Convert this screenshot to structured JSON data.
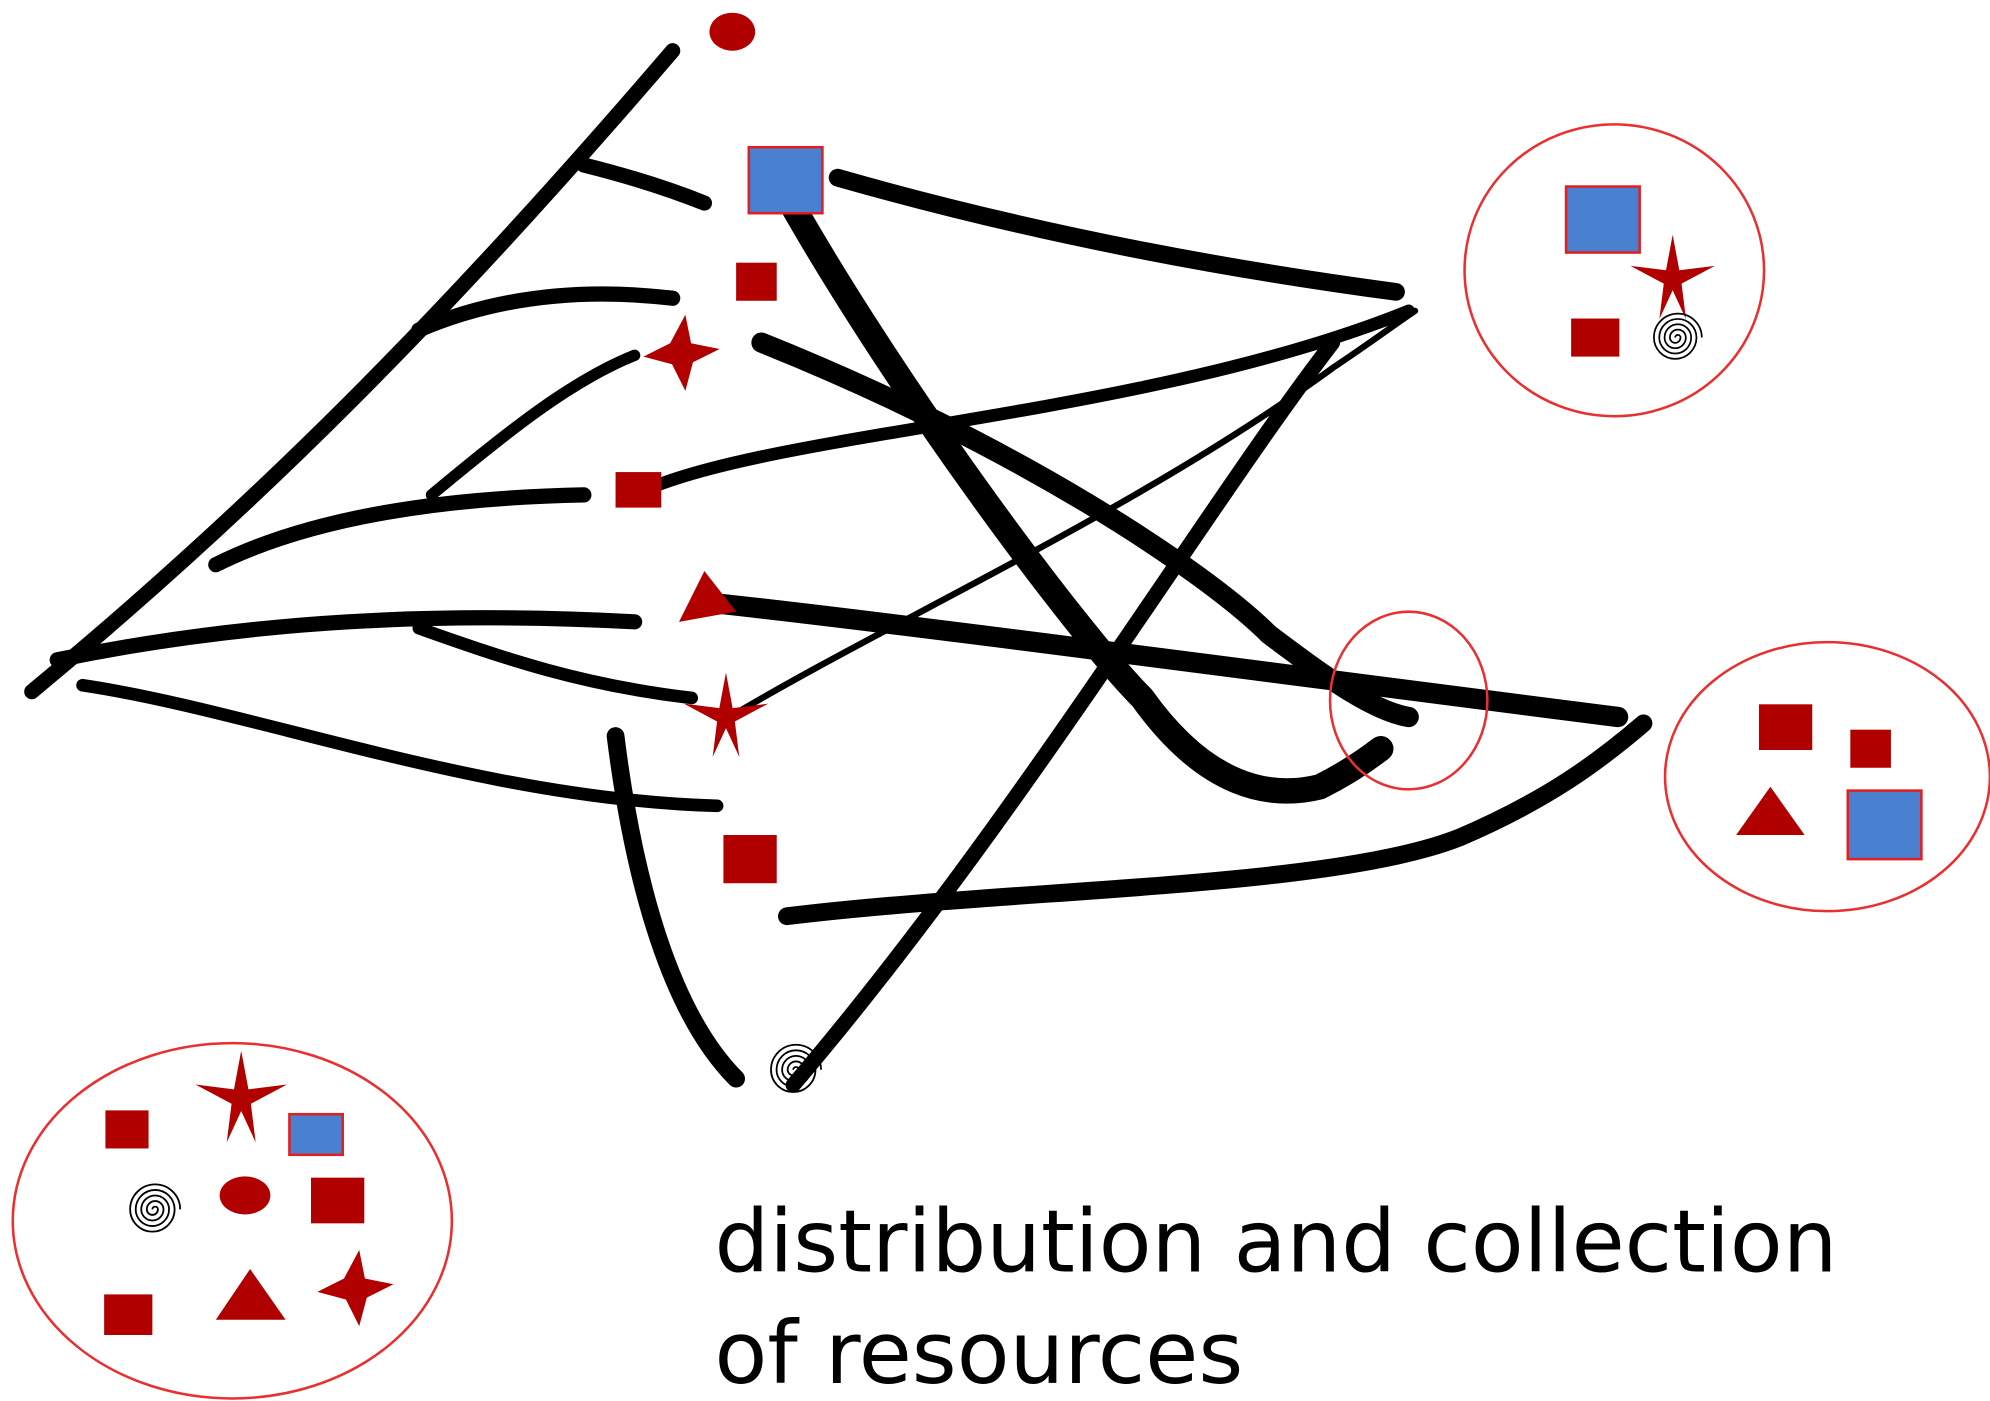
{
  "caption": {
    "lines": [
      "distribution and collection",
      "of resources"
    ]
  }
}
